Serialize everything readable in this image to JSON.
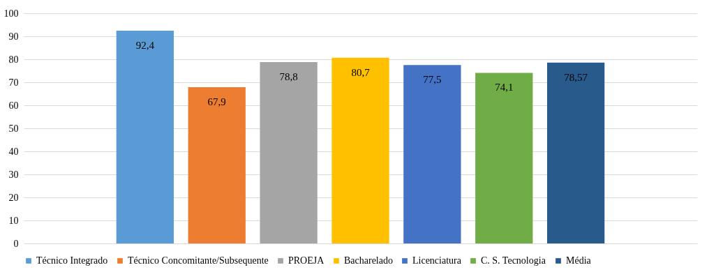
{
  "chart_data": {
    "type": "bar",
    "categories": [
      null
    ],
    "series": [
      {
        "name": "Técnico Integrado",
        "color": "#5b9bd5",
        "values": [
          92.4
        ],
        "value_labels": [
          "92,4"
        ]
      },
      {
        "name": "Técnico Concomitante/Subsequente",
        "color": "#ed7d31",
        "values": [
          67.9
        ],
        "value_labels": [
          "67,9"
        ]
      },
      {
        "name": "PROEJA",
        "color": "#a5a5a5",
        "values": [
          78.8
        ],
        "value_labels": [
          "78,8"
        ]
      },
      {
        "name": "Bacharelado",
        "color": "#ffc000",
        "values": [
          80.7
        ],
        "value_labels": [
          "80,7"
        ]
      },
      {
        "name": "Licenciatura",
        "color": "#4472c4",
        "values": [
          77.5
        ],
        "value_labels": [
          "77,5"
        ]
      },
      {
        "name": "C. S. Tecnologia",
        "color": "#70ad47",
        "values": [
          74.1
        ],
        "value_labels": [
          "74,1"
        ]
      },
      {
        "name": "Média",
        "color": "#285a8c",
        "values": [
          78.57
        ],
        "value_labels": [
          "78,57"
        ]
      }
    ],
    "ylim": [
      0,
      100
    ],
    "yticks": [
      0,
      10,
      20,
      30,
      40,
      50,
      60,
      70,
      80,
      90,
      100
    ],
    "grid": "y",
    "legend": "bottom",
    "tick_labels": "y"
  }
}
